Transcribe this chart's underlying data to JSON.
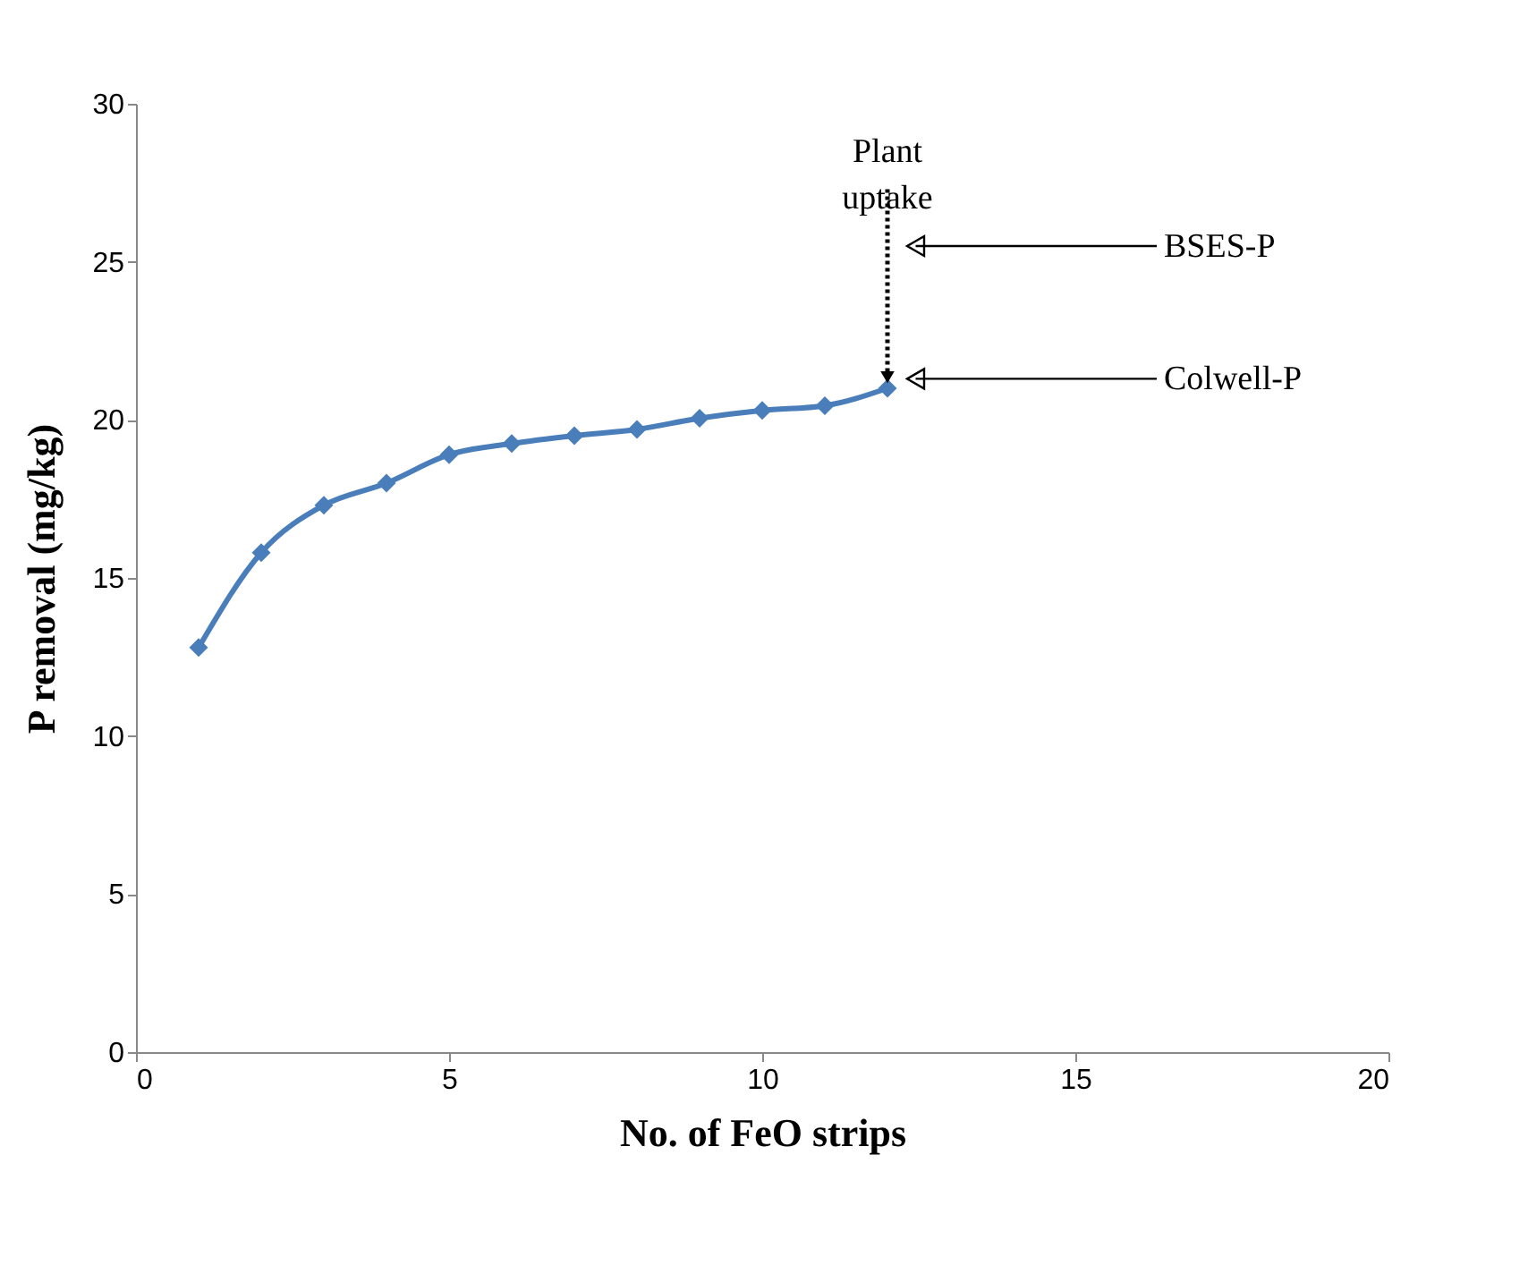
{
  "chart_data": {
    "type": "line",
    "xlabel": "No. of FeO strips",
    "ylabel": "P removal (mg/kg)",
    "x": [
      1,
      2,
      3,
      4,
      5,
      6,
      7,
      8,
      9,
      10,
      11,
      12
    ],
    "series": [
      {
        "color": "#4a7ebb",
        "values": [
          12.8,
          15.8,
          17.3,
          18.0,
          18.9,
          19.25,
          19.5,
          19.7,
          20.05,
          20.3,
          20.45,
          21.0
        ]
      }
    ],
    "xlim": [
      0,
      20
    ],
    "xticks": [
      0,
      5,
      10,
      15,
      20
    ],
    "ylim": [
      0,
      30
    ],
    "yticks": [
      0,
      5,
      10,
      15,
      20,
      25,
      30
    ],
    "grid": false,
    "marker": "diamond",
    "line_style": "solid",
    "annotations": [
      {
        "text": "Plant uptake",
        "x": 12,
        "y": 21.0
      },
      "BSES-P",
      "Colwell-P"
    ]
  }
}
